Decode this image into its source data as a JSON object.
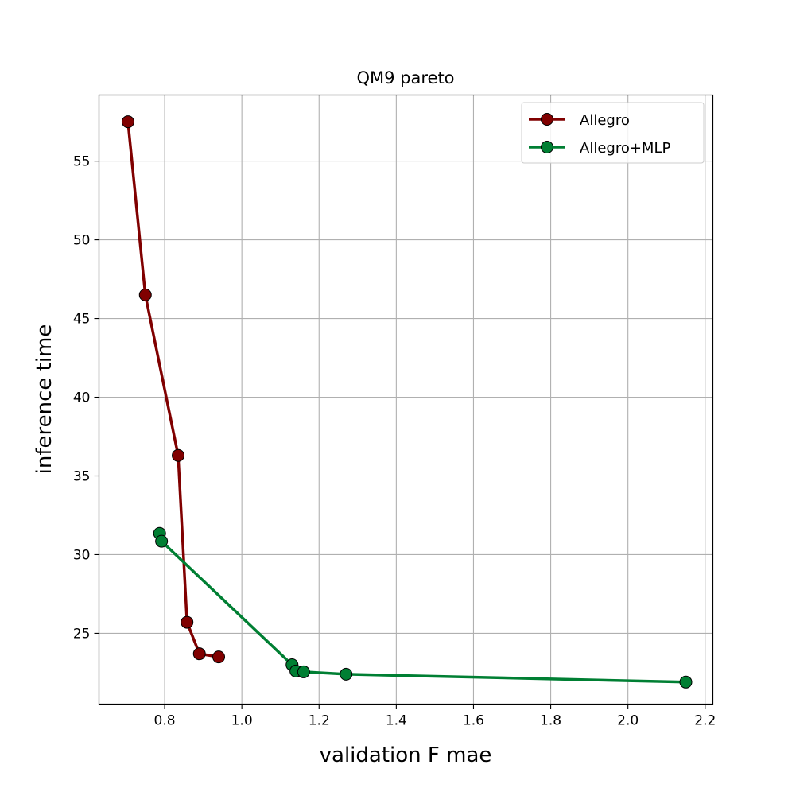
{
  "chart_data": {
    "type": "line",
    "title": "QM9 pareto",
    "xlabel": "validation F mae",
    "ylabel": "inference time",
    "xlim": [
      0.63,
      2.22
    ],
    "ylim": [
      20.5,
      59.2
    ],
    "xticks": [
      0.8,
      1.0,
      1.2,
      1.4,
      1.6,
      1.8,
      2.0,
      2.2
    ],
    "xtick_labels": [
      "0.8",
      "1.0",
      "1.2",
      "1.4",
      "1.6",
      "1.8",
      "2.0",
      "2.2"
    ],
    "yticks": [
      25,
      30,
      35,
      40,
      45,
      50,
      55
    ],
    "ytick_labels": [
      "25",
      "30",
      "35",
      "40",
      "45",
      "50",
      "55"
    ],
    "grid": true,
    "legend_position": "top-right",
    "series": [
      {
        "name": "Allegro",
        "color": "#800000",
        "marker": "circle",
        "points": [
          [
            0.705,
            57.5
          ],
          [
            0.75,
            46.5
          ],
          [
            0.835,
            36.3
          ],
          [
            0.858,
            25.7
          ],
          [
            0.89,
            23.7
          ],
          [
            0.94,
            23.5
          ]
        ]
      },
      {
        "name": "Allegro+MLP",
        "color": "#007f33",
        "marker": "circle",
        "points": [
          [
            0.787,
            31.35
          ],
          [
            0.792,
            30.85
          ],
          [
            1.13,
            23.0
          ],
          [
            1.14,
            22.6
          ],
          [
            1.16,
            22.55
          ],
          [
            1.27,
            22.4
          ],
          [
            2.15,
            21.9
          ]
        ]
      }
    ]
  }
}
